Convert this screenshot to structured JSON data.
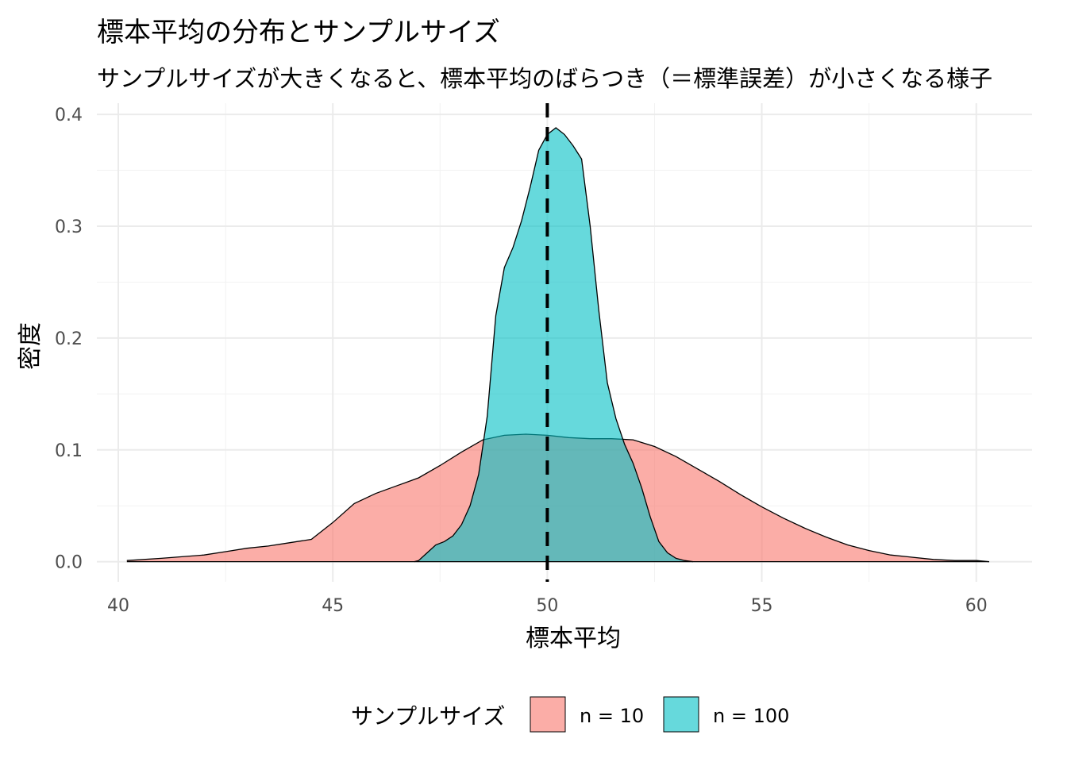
{
  "chart_data": {
    "type": "area",
    "title": "標本平均の分布とサンプルサイズ",
    "subtitle": "サンプルサイズが大きくなると、標本平均のばらつき（＝標準誤差）が小さくなる様子",
    "xlabel": "標本平均",
    "ylabel": "密度",
    "xlim": [
      39.5,
      61.3
    ],
    "ylim": [
      -0.018,
      0.41
    ],
    "x_ticks": [
      "40",
      "45",
      "50",
      "55",
      "60"
    ],
    "x_tick_values": [
      40,
      45,
      50,
      55,
      60
    ],
    "y_ticks": [
      "0.0",
      "0.1",
      "0.2",
      "0.3",
      "0.4"
    ],
    "y_tick_values": [
      0,
      0.1,
      0.2,
      0.3,
      0.4
    ],
    "grid": true,
    "reference_line": {
      "x": 50,
      "style": "dashed"
    },
    "legend": {
      "title": "サンプルサイズ",
      "position": "bottom"
    },
    "series": [
      {
        "name": "n = 10",
        "color": "#F8766D",
        "x": [
          40.2,
          41.0,
          42.0,
          42.5,
          43.0,
          43.5,
          44.0,
          44.5,
          45.0,
          45.5,
          46.0,
          46.5,
          47.0,
          47.5,
          48.0,
          48.5,
          49.0,
          49.5,
          50.0,
          50.5,
          51.0,
          51.5,
          52.0,
          52.5,
          53.0,
          53.5,
          54.0,
          54.5,
          55.0,
          55.5,
          56.0,
          56.5,
          57.0,
          57.5,
          58.0,
          58.5,
          59.0,
          59.5,
          60.0,
          60.3
        ],
        "values": [
          0.001,
          0.003,
          0.006,
          0.009,
          0.012,
          0.014,
          0.017,
          0.02,
          0.035,
          0.052,
          0.061,
          0.068,
          0.075,
          0.086,
          0.098,
          0.109,
          0.113,
          0.114,
          0.113,
          0.111,
          0.11,
          0.11,
          0.109,
          0.103,
          0.094,
          0.083,
          0.072,
          0.06,
          0.049,
          0.039,
          0.03,
          0.022,
          0.015,
          0.01,
          0.006,
          0.004,
          0.002,
          0.001,
          0.001,
          0.0
        ]
      },
      {
        "name": "n = 100",
        "color": "#00BFC4",
        "x": [
          46.9,
          47.0,
          47.2,
          47.4,
          47.6,
          47.8,
          48.0,
          48.2,
          48.4,
          48.6,
          48.8,
          49.0,
          49.2,
          49.4,
          49.6,
          49.8,
          50.0,
          50.2,
          50.4,
          50.6,
          50.8,
          51.0,
          51.2,
          51.4,
          51.6,
          51.8,
          52.0,
          52.2,
          52.4,
          52.6,
          52.8,
          53.0,
          53.2,
          53.4
        ],
        "values": [
          0.0,
          0.001,
          0.008,
          0.015,
          0.018,
          0.023,
          0.033,
          0.05,
          0.078,
          0.13,
          0.22,
          0.263,
          0.281,
          0.305,
          0.335,
          0.368,
          0.382,
          0.388,
          0.382,
          0.372,
          0.36,
          0.3,
          0.225,
          0.16,
          0.128,
          0.105,
          0.088,
          0.066,
          0.04,
          0.018,
          0.008,
          0.003,
          0.001,
          0.0
        ]
      }
    ]
  }
}
